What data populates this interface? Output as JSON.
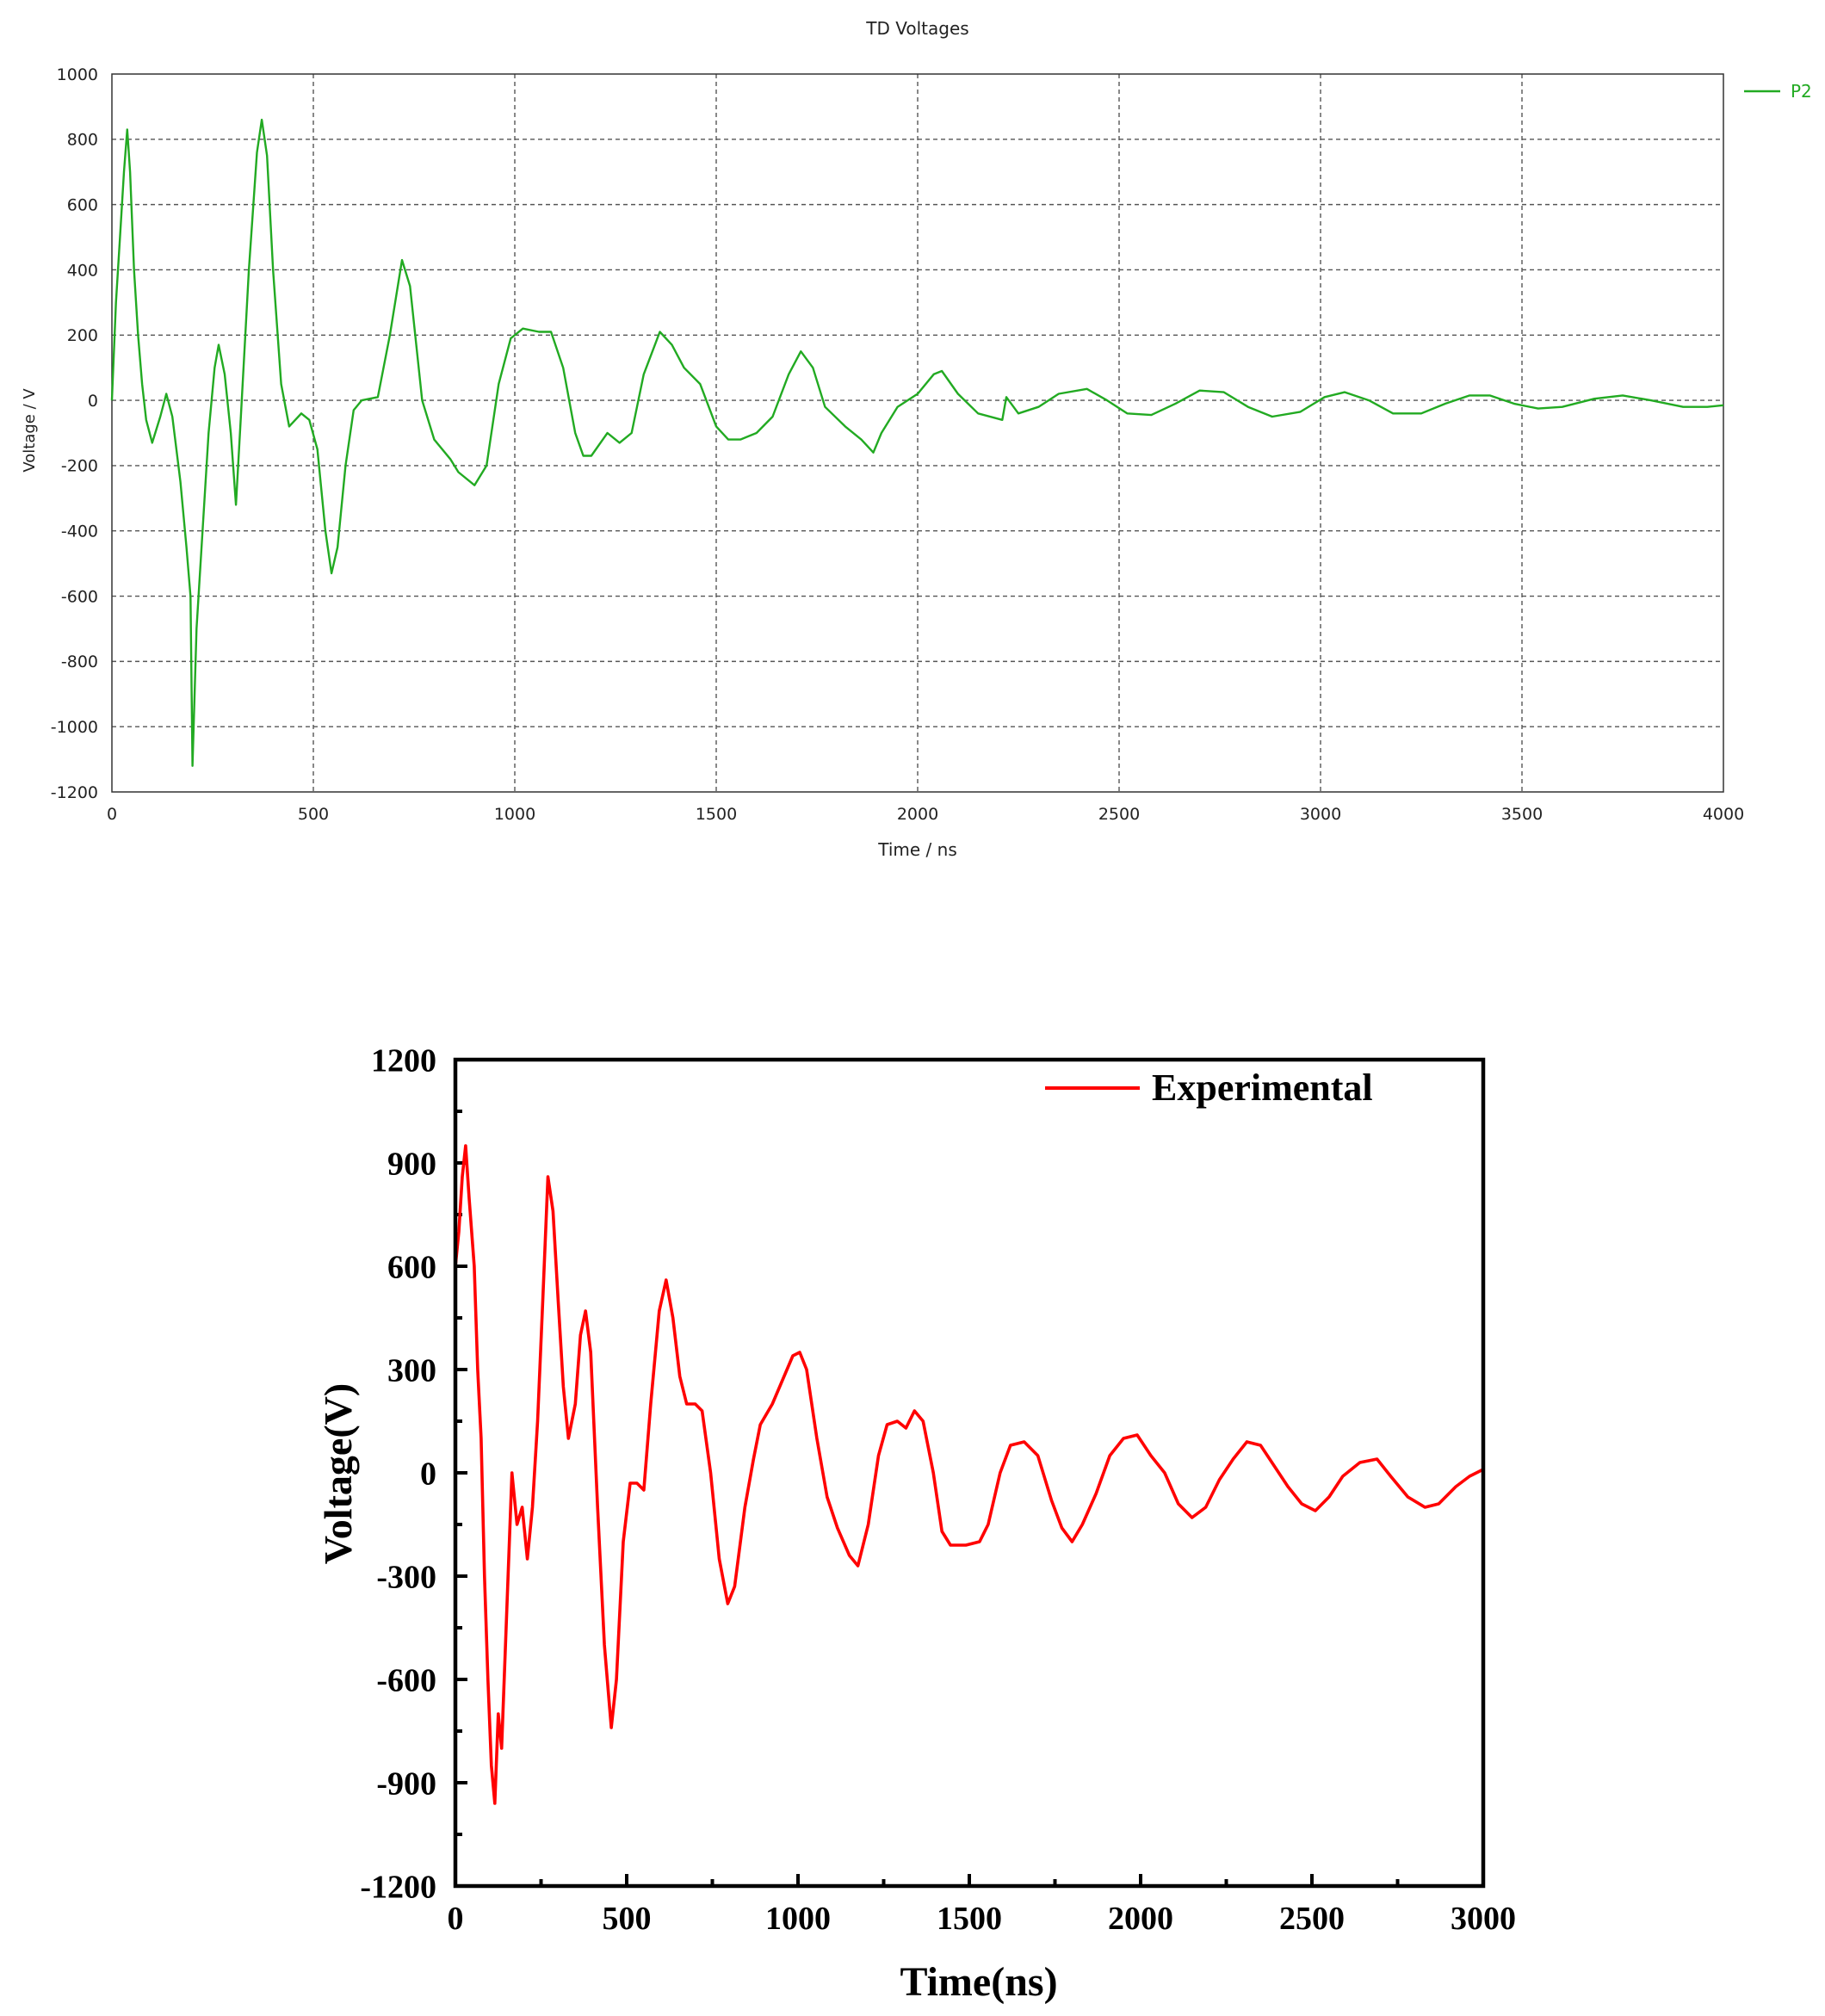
{
  "chart_data": [
    {
      "type": "line",
      "title": "TD Voltages",
      "xlabel": "Time / ns",
      "ylabel": "Voltage / V",
      "xlim": [
        0,
        4000
      ],
      "ylim": [
        -1200,
        1000
      ],
      "xticks": [
        "0",
        "500",
        "1000",
        "1500",
        "2000",
        "2500",
        "3000",
        "3500",
        "4000"
      ],
      "yticks": [
        "1000",
        "800",
        "600",
        "400",
        "200",
        "0",
        "-200",
        "-400",
        "-600",
        "-800",
        "-1000",
        "-1200"
      ],
      "grid": true,
      "legend_position": "top-right",
      "series": [
        {
          "name": "P2",
          "color": "#22aa22",
          "points": [
            [
              0,
              0
            ],
            [
              10,
              300
            ],
            [
              20,
              500
            ],
            [
              30,
              700
            ],
            [
              38,
              830
            ],
            [
              45,
              700
            ],
            [
              55,
              400
            ],
            [
              65,
              200
            ],
            [
              75,
              50
            ],
            [
              85,
              -60
            ],
            [
              100,
              -130
            ],
            [
              120,
              -50
            ],
            [
              135,
              20
            ],
            [
              150,
              -50
            ],
            [
              170,
              -250
            ],
            [
              185,
              -450
            ],
            [
              195,
              -600
            ],
            [
              200,
              -1120
            ],
            [
              210,
              -700
            ],
            [
              225,
              -400
            ],
            [
              240,
              -100
            ],
            [
              255,
              100
            ],
            [
              265,
              170
            ],
            [
              280,
              80
            ],
            [
              295,
              -100
            ],
            [
              308,
              -320
            ],
            [
              320,
              -50
            ],
            [
              340,
              400
            ],
            [
              360,
              760
            ],
            [
              372,
              860
            ],
            [
              385,
              750
            ],
            [
              400,
              400
            ],
            [
              420,
              50
            ],
            [
              440,
              -80
            ],
            [
              470,
              -40
            ],
            [
              490,
              -60
            ],
            [
              510,
              -150
            ],
            [
              530,
              -400
            ],
            [
              545,
              -530
            ],
            [
              560,
              -450
            ],
            [
              580,
              -200
            ],
            [
              600,
              -30
            ],
            [
              620,
              0
            ],
            [
              660,
              10
            ],
            [
              690,
              200
            ],
            [
              720,
              430
            ],
            [
              740,
              350
            ],
            [
              770,
              0
            ],
            [
              800,
              -120
            ],
            [
              840,
              -180
            ],
            [
              860,
              -220
            ],
            [
              900,
              -260
            ],
            [
              930,
              -200
            ],
            [
              960,
              50
            ],
            [
              990,
              190
            ],
            [
              1020,
              220
            ],
            [
              1060,
              210
            ],
            [
              1090,
              210
            ],
            [
              1120,
              100
            ],
            [
              1150,
              -100
            ],
            [
              1170,
              -170
            ],
            [
              1190,
              -170
            ],
            [
              1230,
              -100
            ],
            [
              1260,
              -130
            ],
            [
              1290,
              -100
            ],
            [
              1320,
              80
            ],
            [
              1360,
              210
            ],
            [
              1390,
              170
            ],
            [
              1420,
              100
            ],
            [
              1460,
              50
            ],
            [
              1500,
              -80
            ],
            [
              1530,
              -120
            ],
            [
              1560,
              -120
            ],
            [
              1600,
              -100
            ],
            [
              1640,
              -50
            ],
            [
              1680,
              80
            ],
            [
              1710,
              150
            ],
            [
              1740,
              100
            ],
            [
              1770,
              -20
            ],
            [
              1820,
              -80
            ],
            [
              1860,
              -120
            ],
            [
              1890,
              -160
            ],
            [
              1910,
              -100
            ],
            [
              1950,
              -20
            ],
            [
              2000,
              20
            ],
            [
              2040,
              80
            ],
            [
              2060,
              90
            ],
            [
              2100,
              20
            ],
            [
              2150,
              -40
            ],
            [
              2210,
              -60
            ],
            [
              2220,
              10
            ],
            [
              2250,
              -40
            ],
            [
              2300,
              -20
            ],
            [
              2350,
              20
            ],
            [
              2420,
              35
            ],
            [
              2470,
              0
            ],
            [
              2520,
              -40
            ],
            [
              2580,
              -45
            ],
            [
              2640,
              -10
            ],
            [
              2700,
              30
            ],
            [
              2760,
              25
            ],
            [
              2820,
              -20
            ],
            [
              2880,
              -50
            ],
            [
              2950,
              -35
            ],
            [
              3010,
              10
            ],
            [
              3060,
              25
            ],
            [
              3120,
              0
            ],
            [
              3180,
              -40
            ],
            [
              3250,
              -40
            ],
            [
              3310,
              -10
            ],
            [
              3370,
              15
            ],
            [
              3420,
              15
            ],
            [
              3480,
              -10
            ],
            [
              3540,
              -25
            ],
            [
              3600,
              -20
            ],
            [
              3680,
              5
            ],
            [
              3750,
              15
            ],
            [
              3820,
              0
            ],
            [
              3900,
              -20
            ],
            [
              3960,
              -20
            ],
            [
              4000,
              -15
            ]
          ]
        }
      ]
    },
    {
      "type": "line",
      "xlabel": "Time(ns)",
      "ylabel": "Voltage(V)",
      "xlim": [
        0,
        3000
      ],
      "ylim": [
        -1200,
        1200
      ],
      "xticks": [
        "0",
        "500",
        "1000",
        "1500",
        "2000",
        "2500",
        "3000"
      ],
      "yticks": [
        "1200",
        "900",
        "600",
        "300",
        "0",
        "-300",
        "-600",
        "-900",
        "-1200"
      ],
      "grid": false,
      "legend_position": "top-right",
      "series": [
        {
          "name": "Experimental",
          "color": "#ff0000",
          "points": [
            [
              0,
              600
            ],
            [
              10,
              700
            ],
            [
              20,
              860
            ],
            [
              30,
              950
            ],
            [
              40,
              800
            ],
            [
              55,
              600
            ],
            [
              65,
              300
            ],
            [
              75,
              100
            ],
            [
              85,
              -300
            ],
            [
              95,
              -600
            ],
            [
              105,
              -850
            ],
            [
              115,
              -960
            ],
            [
              125,
              -700
            ],
            [
              135,
              -800
            ],
            [
              150,
              -400
            ],
            [
              165,
              0
            ],
            [
              180,
              -150
            ],
            [
              195,
              -100
            ],
            [
              210,
              -250
            ],
            [
              225,
              -100
            ],
            [
              240,
              150
            ],
            [
              255,
              500
            ],
            [
              270,
              860
            ],
            [
              285,
              760
            ],
            [
              300,
              500
            ],
            [
              315,
              250
            ],
            [
              330,
              100
            ],
            [
              350,
              200
            ],
            [
              365,
              400
            ],
            [
              380,
              470
            ],
            [
              395,
              350
            ],
            [
              415,
              -100
            ],
            [
              435,
              -500
            ],
            [
              455,
              -740
            ],
            [
              470,
              -600
            ],
            [
              490,
              -200
            ],
            [
              510,
              -30
            ],
            [
              530,
              -30
            ],
            [
              550,
              -50
            ],
            [
              570,
              200
            ],
            [
              595,
              470
            ],
            [
              615,
              560
            ],
            [
              635,
              450
            ],
            [
              655,
              280
            ],
            [
              675,
              200
            ],
            [
              700,
              200
            ],
            [
              720,
              180
            ],
            [
              745,
              0
            ],
            [
              770,
              -250
            ],
            [
              795,
              -380
            ],
            [
              815,
              -330
            ],
            [
              845,
              -100
            ],
            [
              870,
              40
            ],
            [
              890,
              140
            ],
            [
              925,
              200
            ],
            [
              955,
              270
            ],
            [
              985,
              340
            ],
            [
              1005,
              350
            ],
            [
              1025,
              300
            ],
            [
              1055,
              100
            ],
            [
              1085,
              -70
            ],
            [
              1115,
              -160
            ],
            [
              1150,
              -240
            ],
            [
              1175,
              -270
            ],
            [
              1205,
              -150
            ],
            [
              1235,
              50
            ],
            [
              1260,
              140
            ],
            [
              1290,
              150
            ],
            [
              1315,
              130
            ],
            [
              1340,
              180
            ],
            [
              1365,
              150
            ],
            [
              1395,
              0
            ],
            [
              1420,
              -170
            ],
            [
              1445,
              -210
            ],
            [
              1490,
              -210
            ],
            [
              1530,
              -200
            ],
            [
              1555,
              -150
            ],
            [
              1590,
              0
            ],
            [
              1620,
              80
            ],
            [
              1660,
              90
            ],
            [
              1700,
              50
            ],
            [
              1740,
              -80
            ],
            [
              1770,
              -160
            ],
            [
              1800,
              -200
            ],
            [
              1830,
              -150
            ],
            [
              1870,
              -60
            ],
            [
              1910,
              50
            ],
            [
              1950,
              100
            ],
            [
              1990,
              110
            ],
            [
              2030,
              50
            ],
            [
              2070,
              0
            ],
            [
              2110,
              -90
            ],
            [
              2150,
              -130
            ],
            [
              2190,
              -100
            ],
            [
              2230,
              -20
            ],
            [
              2270,
              40
            ],
            [
              2310,
              90
            ],
            [
              2350,
              80
            ],
            [
              2390,
              20
            ],
            [
              2430,
              -40
            ],
            [
              2470,
              -90
            ],
            [
              2510,
              -110
            ],
            [
              2550,
              -70
            ],
            [
              2590,
              -10
            ],
            [
              2640,
              30
            ],
            [
              2690,
              40
            ],
            [
              2730,
              -10
            ],
            [
              2780,
              -70
            ],
            [
              2830,
              -100
            ],
            [
              2870,
              -90
            ],
            [
              2920,
              -40
            ],
            [
              2960,
              -10
            ],
            [
              3000,
              10
            ]
          ]
        }
      ]
    }
  ]
}
